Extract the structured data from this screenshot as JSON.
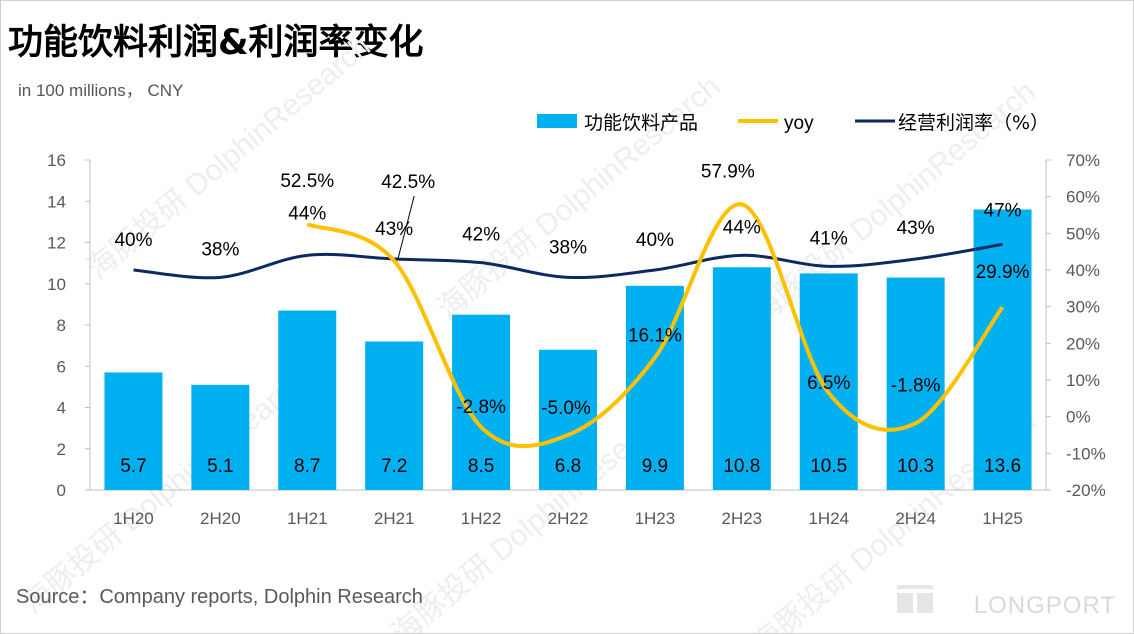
{
  "page": {
    "title": "功能饮料利润&利润率变化",
    "unit": "in 100 millions， CNY",
    "source": "Source：Company reports, Dolphin Research",
    "brand": "LONGPORT",
    "watermark": "海豚投研 DolphinResearch"
  },
  "colors": {
    "bar": "#00b0f0",
    "yoy": "#ffc000",
    "margin": "#0c2960",
    "axis": "#bfbfbf",
    "text": "#595959"
  },
  "chart_data": {
    "type": "bar",
    "categories": [
      "1H20",
      "2H20",
      "1H21",
      "2H21",
      "1H22",
      "2H22",
      "1H23",
      "2H23",
      "1H24",
      "2H24",
      "1H25"
    ],
    "series": [
      {
        "name": "功能饮料产品",
        "type": "bar",
        "axis": "left",
        "values": [
          5.7,
          5.1,
          8.7,
          7.2,
          8.5,
          6.8,
          9.9,
          10.8,
          10.5,
          10.3,
          13.6
        ],
        "labels": [
          "5.7",
          "5.1",
          "8.7",
          "7.2",
          "8.5",
          "6.8",
          "9.9",
          "10.8",
          "10.5",
          "10.3",
          "13.6"
        ]
      },
      {
        "name": "yoy",
        "type": "line",
        "axis": "right",
        "values": [
          null,
          null,
          52.5,
          42.5,
          -2.8,
          -5.0,
          16.1,
          57.9,
          6.5,
          -1.8,
          29.9
        ],
        "labels": [
          "",
          "",
          "52.5%",
          "42.5%",
          "-2.8%",
          "-5.0%",
          "16.1%",
          "57.9%",
          "6.5%",
          "-1.8%",
          "29.9%"
        ]
      },
      {
        "name": "经营利润率（%）",
        "type": "line",
        "axis": "right",
        "values": [
          40,
          38,
          44,
          43,
          42,
          38,
          40,
          44,
          41,
          43,
          47
        ],
        "labels": [
          "40%",
          "38%",
          "44%",
          "43%",
          "42%",
          "38%",
          "40%",
          "44%",
          "41%",
          "43%",
          "47%"
        ]
      }
    ],
    "y_left": {
      "min": 0,
      "max": 16,
      "ticks": [
        "0",
        "2",
        "4",
        "6",
        "8",
        "10",
        "12",
        "14",
        "16"
      ]
    },
    "y_right": {
      "min": -20,
      "max": 70,
      "ticks": [
        "-20%",
        "-10%",
        "0%",
        "10%",
        "20%",
        "30%",
        "40%",
        "50%",
        "60%",
        "70%"
      ]
    },
    "legend_position": "top-right",
    "grid": false
  }
}
